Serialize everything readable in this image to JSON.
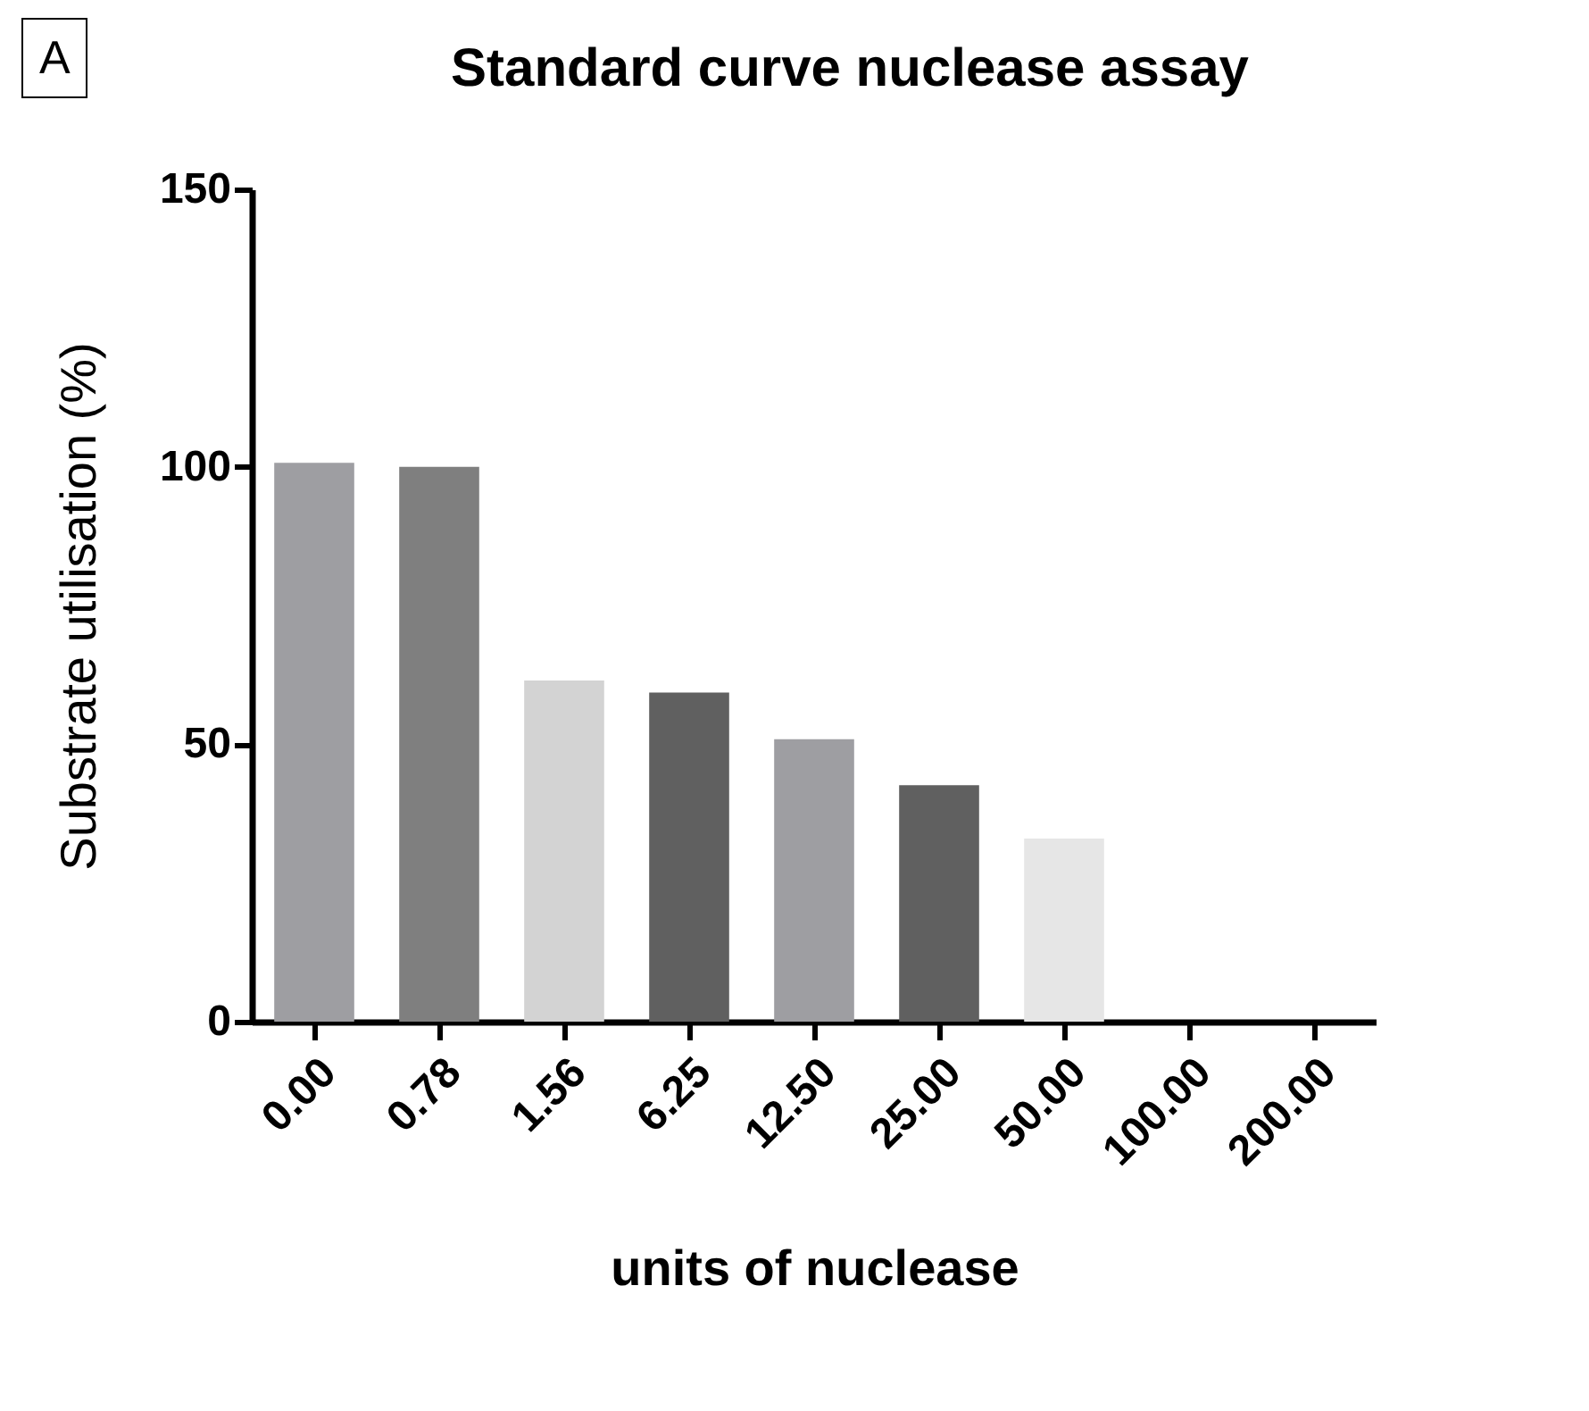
{
  "chart_data": {
    "type": "bar",
    "title": "Standard curve nuclease assay",
    "xlabel": "units of nuclease",
    "ylabel": "Substrate utilisation (%)",
    "annotations": [
      "A"
    ],
    "categories": [
      "0.00",
      "0.78",
      "1.56",
      "6.25",
      "12.50",
      "25.00",
      "50.00",
      "100.00",
      "200.00"
    ],
    "values": [
      100.7,
      100,
      61.5,
      59.3,
      50.9,
      42.6,
      33.0,
      0,
      0
    ],
    "colors": [
      "#9e9ea2",
      "#7f7f7f",
      "#d3d3d3",
      "#606060",
      "#9e9ea2",
      "#606060",
      "#e6e6e6",
      "#9e9ea2",
      "#7f7f7f"
    ],
    "ylim": [
      0,
      150
    ],
    "yticks": [
      0,
      50,
      100,
      150
    ],
    "grid": false,
    "legend": false
  }
}
